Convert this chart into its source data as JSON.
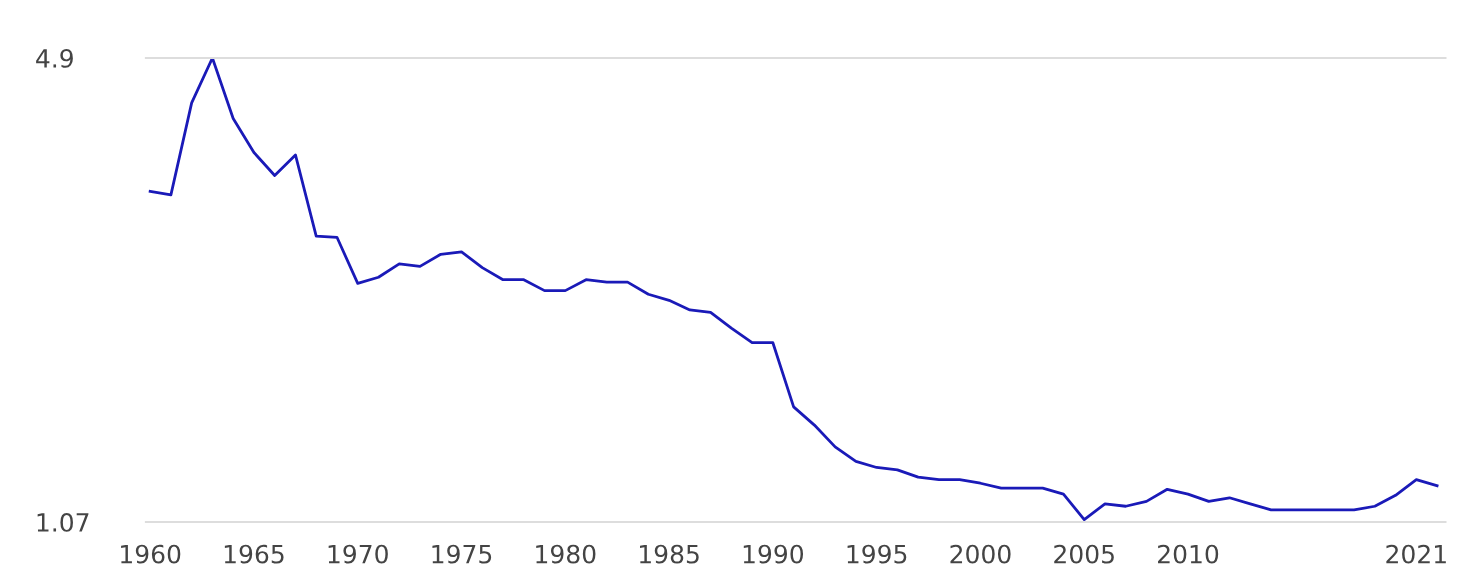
{
  "chart_data": {
    "type": "line",
    "x": [
      1960,
      1961,
      1962,
      1963,
      1964,
      1965,
      1966,
      1967,
      1968,
      1969,
      1970,
      1971,
      1972,
      1973,
      1974,
      1975,
      1976,
      1977,
      1978,
      1979,
      1980,
      1981,
      1982,
      1983,
      1984,
      1985,
      1986,
      1987,
      1988,
      1989,
      1990,
      1991,
      1992,
      1993,
      1994,
      1995,
      1996,
      1997,
      1998,
      1999,
      2000,
      2001,
      2002,
      2003,
      2004,
      2005,
      2006,
      2007,
      2008,
      2009,
      2010,
      2011,
      2012,
      2013,
      2014,
      2015,
      2016,
      2017,
      2018,
      2019,
      2020,
      2021,
      2022
    ],
    "series": [
      {
        "color": "#1a1ab8",
        "values": [
          3.8,
          3.77,
          4.53,
          4.9,
          4.4,
          4.12,
          3.93,
          4.1,
          3.43,
          3.42,
          3.04,
          3.09,
          3.2,
          3.18,
          3.28,
          3.3,
          3.17,
          3.07,
          3.07,
          2.98,
          2.98,
          3.07,
          3.05,
          3.05,
          2.95,
          2.9,
          2.82,
          2.8,
          2.67,
          2.55,
          2.55,
          2.02,
          1.87,
          1.69,
          1.57,
          1.52,
          1.5,
          1.44,
          1.42,
          1.42,
          1.39,
          1.35,
          1.35,
          1.35,
          1.3,
          1.09,
          1.22,
          1.2,
          1.24,
          1.34,
          1.3,
          1.24,
          1.27,
          1.22,
          1.17,
          1.17,
          1.17,
          1.17,
          1.17,
          1.2,
          1.29,
          1.42,
          1.37
        ]
      }
    ],
    "xlim": [
      1959.8,
      2022.4
    ],
    "xticks": [
      1960,
      1965,
      1970,
      1975,
      1980,
      1985,
      1990,
      1995,
      2000,
      2005,
      2010,
      2021
    ],
    "ylim": [
      1.07,
      4.9
    ],
    "yticks": [
      1.07,
      4.9
    ],
    "marker": "none",
    "line_style": "solid"
  }
}
